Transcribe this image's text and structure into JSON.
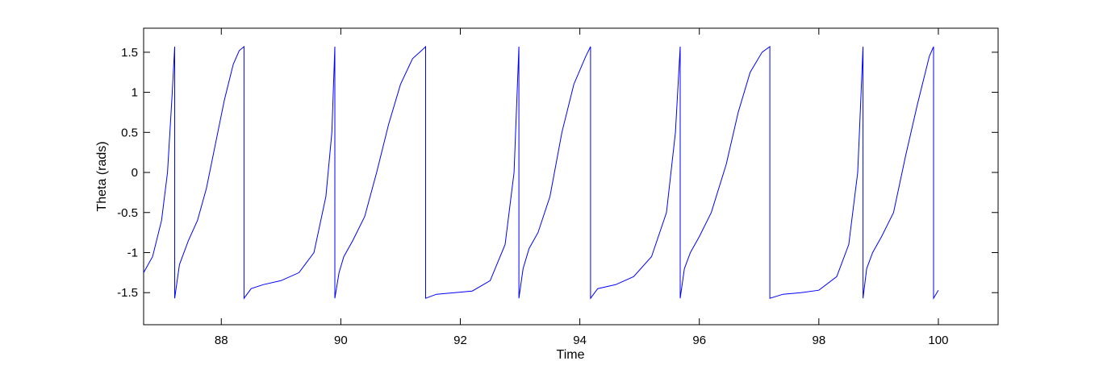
{
  "chart_data": {
    "type": "line",
    "title": "",
    "xlabel": "Time",
    "ylabel": "Theta (rads)",
    "xlim": [
      86.7,
      101.0
    ],
    "ylim": [
      -1.9,
      1.8
    ],
    "x_ticks": [
      88,
      90,
      92,
      94,
      96,
      98,
      100
    ],
    "x_tick_labels": [
      "88",
      "90",
      "92",
      "94",
      "96",
      "98",
      "100"
    ],
    "y_ticks": [
      1.5,
      1,
      0.5,
      0,
      -0.5,
      -1,
      -1.5
    ],
    "y_tick_labels": [
      "1.5",
      "1",
      "0.5",
      "0",
      "-0.5",
      "-1",
      "-1.5"
    ],
    "grid": false,
    "legend": "none",
    "line_color": "#0000ff",
    "series": [
      {
        "x": [
          86.7,
          86.85,
          87.0,
          87.1,
          87.18,
          87.22,
          87.22,
          87.3,
          87.45,
          87.6,
          87.75,
          87.9,
          88.05,
          88.2,
          88.3,
          88.38,
          88.38,
          88.5,
          88.7,
          89.0,
          89.3,
          89.55,
          89.75,
          89.85,
          89.9,
          89.9,
          89.97,
          90.05,
          90.2,
          90.4,
          90.6,
          90.8,
          91.0,
          91.2,
          91.35,
          91.42,
          91.42,
          91.6,
          91.9,
          92.2,
          92.5,
          92.75,
          92.9,
          92.98,
          92.98,
          93.05,
          93.15,
          93.3,
          93.5,
          93.7,
          93.9,
          94.1,
          94.18,
          94.18,
          94.3,
          94.6,
          94.9,
          95.2,
          95.45,
          95.6,
          95.68,
          95.68,
          95.75,
          95.85,
          96.0,
          96.2,
          96.45,
          96.65,
          96.85,
          97.05,
          97.18,
          97.18,
          97.4,
          97.7,
          98.0,
          98.3,
          98.5,
          98.65,
          98.74,
          98.74,
          98.8,
          98.9,
          99.05,
          99.25,
          99.45,
          99.65,
          99.85,
          99.92,
          99.92,
          100.0
        ],
        "y": [
          -1.25,
          -1.05,
          -0.6,
          0.0,
          1.0,
          1.57,
          -1.57,
          -1.15,
          -0.85,
          -0.6,
          -0.2,
          0.35,
          0.9,
          1.35,
          1.52,
          1.57,
          -1.57,
          -1.45,
          -1.4,
          -1.35,
          -1.25,
          -1.0,
          -0.3,
          0.5,
          1.57,
          -1.57,
          -1.25,
          -1.05,
          -0.85,
          -0.55,
          0.0,
          0.6,
          1.1,
          1.42,
          1.52,
          1.57,
          -1.57,
          -1.52,
          -1.5,
          -1.48,
          -1.35,
          -0.9,
          0.0,
          1.57,
          -1.57,
          -1.2,
          -0.95,
          -0.75,
          -0.3,
          0.5,
          1.1,
          1.45,
          1.57,
          -1.57,
          -1.45,
          -1.4,
          -1.3,
          -1.05,
          -0.5,
          0.5,
          1.57,
          -1.57,
          -1.2,
          -1.0,
          -0.8,
          -0.5,
          0.1,
          0.75,
          1.25,
          1.5,
          1.57,
          -1.57,
          -1.52,
          -1.5,
          -1.47,
          -1.3,
          -0.9,
          0.0,
          1.57,
          -1.57,
          -1.2,
          -1.0,
          -0.8,
          -0.5,
          0.2,
          0.85,
          1.45,
          1.57,
          -1.57,
          -1.47
        ]
      }
    ]
  }
}
